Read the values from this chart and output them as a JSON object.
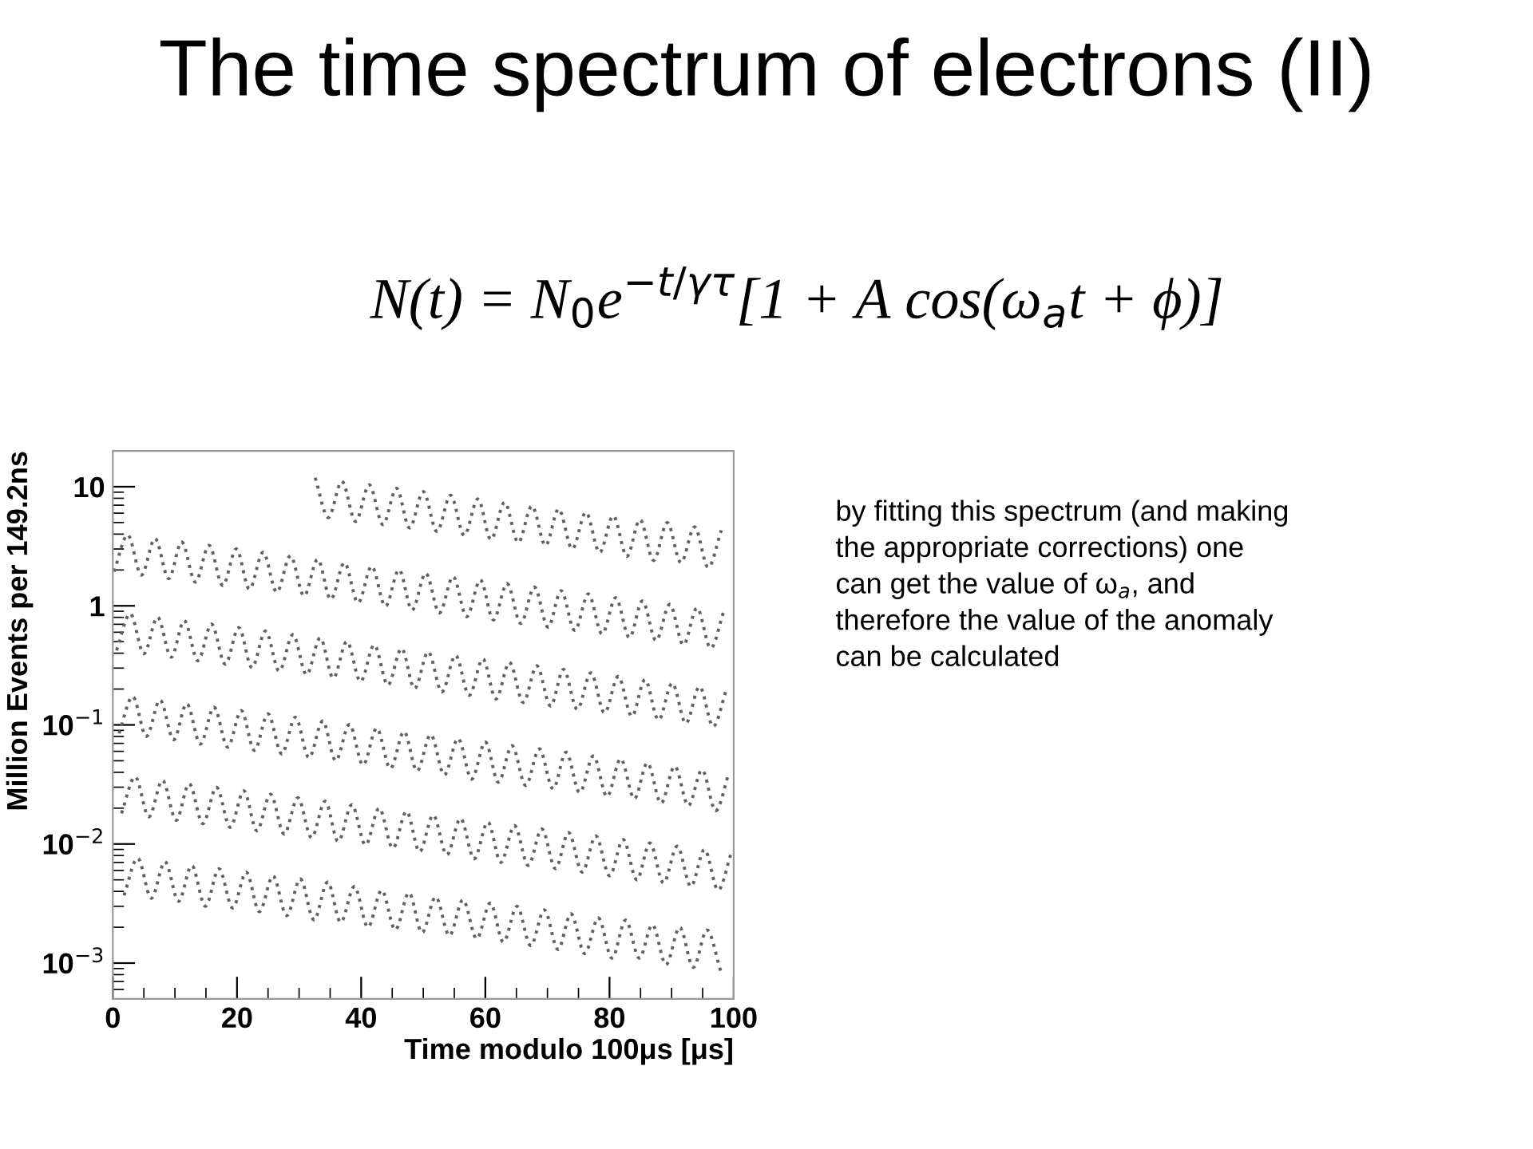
{
  "chart_data": {
    "type": "line",
    "title": "The time spectrum of electrons (II)",
    "xlabel": "Time modulo 100μs [μs]",
    "ylabel": "Million Events per 149.2ns",
    "annotations": [
      "N(t) = N$_{0}$e$^{−t/γτ}$[1 + A cos(ω$_{a}$t + ϕ)]",
      "by fitting this spectrum (and making\nthe appropriate corrections) one\ncan get the value of ω$_{a}$, and\ntherefore the value of the anomaly\ncan be calculated"
    ],
    "xlim": [
      0,
      100
    ],
    "xticks": [
      0,
      20,
      40,
      60,
      80,
      100
    ],
    "ylim": [
      0.0005,
      20
    ],
    "yticks": [
      {
        "value": 0.001,
        "label": "10$^{−3}$"
      },
      {
        "value": 0.01,
        "label": "10$^{−2}$"
      },
      {
        "value": 0.1,
        "label": "10$^{−1}$"
      },
      1,
      10
    ],
    "log": "y",
    "grid": false,
    "marker": "none",
    "line_style": "dotted",
    "series": [
      {
        "color": "#606060",
        "x": [
          32.6,
          34.7,
          36.9,
          39.1,
          41.3,
          43.5,
          45.7,
          47.8,
          50.0,
          52.2,
          54.4,
          56.6,
          58.8,
          60.9,
          63.1,
          65.3,
          67.5,
          69.7,
          71.8,
          74.0,
          76.2,
          78.4,
          80.6,
          82.8,
          84.9,
          87.1,
          89.3,
          91.5,
          93.7,
          95.9,
          98.0
        ],
        "values": [
          11.9,
          5.5,
          11.1,
          5.1,
          10.4,
          4.8,
          9.7,
          4.5,
          9.1,
          4.2,
          8.5,
          3.9,
          7.9,
          3.6,
          7.4,
          3.4,
          6.9,
          3.2,
          6.5,
          3.0,
          6.1,
          2.8,
          5.7,
          2.6,
          5.3,
          2.4,
          5.0,
          2.3,
          4.6,
          2.1,
          4.3
        ]
      },
      {
        "color": "#606060",
        "x": [
          0.2,
          2.4,
          4.6,
          6.8,
          9.0,
          11.1,
          13.3,
          15.5,
          17.7,
          19.9,
          22.0,
          24.2,
          26.4,
          28.6,
          30.8,
          33.0,
          35.1,
          37.3,
          39.5,
          41.7,
          43.9,
          46.1,
          48.2,
          50.4,
          52.6,
          54.8,
          57.0,
          59.2,
          61.3,
          63.5,
          65.7,
          67.9,
          70.1,
          72.2,
          74.4,
          76.6,
          78.8,
          81.0,
          83.2,
          85.3,
          87.5,
          89.7,
          91.9,
          94.1,
          96.3,
          98.4
        ],
        "values": [
          1.94,
          3.94,
          1.81,
          3.68,
          1.69,
          3.44,
          1.58,
          3.22,
          1.48,
          3.01,
          1.38,
          2.82,
          1.3,
          2.63,
          1.21,
          2.46,
          1.13,
          2.3,
          1.06,
          2.15,
          0.99,
          2.01,
          0.92,
          1.88,
          0.87,
          1.76,
          0.81,
          1.65,
          0.76,
          1.54,
          0.71,
          1.44,
          0.66,
          1.34,
          0.62,
          1.26,
          0.58,
          1.17,
          0.54,
          1.1,
          0.51,
          1.03,
          0.47,
          0.96,
          0.44,
          0.9
        ]
      },
      {
        "color": "#606060",
        "x": [
          0.6,
          2.8,
          5.0,
          7.2,
          9.4,
          11.5,
          13.7,
          15.9,
          18.1,
          20.3,
          22.4,
          24.6,
          26.8,
          29.0,
          31.2,
          33.4,
          35.5,
          37.7,
          39.9,
          42.1,
          44.3,
          46.5,
          48.6,
          50.8,
          53.0,
          55.2,
          57.4,
          59.6,
          61.7,
          63.9,
          66.1,
          68.3,
          70.5,
          72.6,
          74.8,
          77.0,
          79.2,
          81.4,
          83.6,
          85.7,
          87.9,
          90.1,
          92.3,
          94.5,
          96.7,
          98.8
        ],
        "values": [
          0.423,
          0.86,
          0.396,
          0.804,
          0.37,
          0.752,
          0.346,
          0.703,
          0.323,
          0.657,
          0.302,
          0.615,
          0.283,
          0.574,
          0.264,
          0.538,
          0.247,
          0.502,
          0.231,
          0.47,
          0.216,
          0.439,
          0.202,
          0.411,
          0.189,
          0.384,
          0.177,
          0.359,
          0.165,
          0.335,
          0.154,
          0.314,
          0.144,
          0.293,
          0.135,
          0.274,
          0.126,
          0.256,
          0.118,
          0.24,
          0.11,
          0.224,
          0.103,
          0.21,
          0.097,
          0.196
        ]
      },
      {
        "color": "#606060",
        "x": [
          1.0,
          3.2,
          5.4,
          7.6,
          9.8,
          11.9,
          14.1,
          16.3,
          18.5,
          20.7,
          22.8,
          25.0,
          27.2,
          29.4,
          31.6,
          33.8,
          35.9,
          38.1,
          40.3,
          42.5,
          44.7,
          46.9,
          49.0,
          51.2,
          53.4,
          55.6,
          57.8,
          60.0,
          62.1,
          64.3,
          66.5,
          68.7,
          70.9,
          73.0,
          75.2,
          77.4,
          79.6,
          81.8,
          84.0,
          86.1,
          88.3,
          90.5,
          92.7,
          94.9,
          97.1,
          99.2
        ],
        "values": [
          0.085,
          0.173,
          0.08,
          0.162,
          0.075,
          0.151,
          0.069,
          0.141,
          0.065,
          0.132,
          0.061,
          0.124,
          0.057,
          0.116,
          0.053,
          0.108,
          0.05,
          0.101,
          0.046,
          0.094,
          0.043,
          0.088,
          0.041,
          0.083,
          0.038,
          0.077,
          0.035,
          0.072,
          0.033,
          0.067,
          0.031,
          0.063,
          0.029,
          0.059,
          0.027,
          0.055,
          0.025,
          0.052,
          0.024,
          0.048,
          0.022,
          0.045,
          0.021,
          0.042,
          0.019,
          0.039
        ]
      },
      {
        "color": "#606060",
        "x": [
          1.4,
          3.6,
          5.8,
          8.0,
          10.2,
          12.3,
          14.5,
          16.7,
          18.9,
          21.1,
          23.2,
          25.4,
          27.6,
          29.8,
          32.0,
          34.2,
          36.3,
          38.5,
          40.7,
          42.9,
          45.1,
          47.3,
          49.4,
          51.6,
          53.8,
          56.0,
          58.2,
          60.4,
          62.5,
          64.7,
          66.9,
          69.1,
          71.3,
          73.4,
          75.6,
          77.8,
          80.0,
          82.2,
          84.4,
          86.5,
          88.7,
          90.9,
          93.1,
          95.3,
          97.5,
          99.6
        ],
        "values": [
          0.0181,
          0.0367,
          0.0169,
          0.0343,
          0.0158,
          0.0321,
          0.0148,
          0.03,
          0.0138,
          0.028,
          0.0129,
          0.0262,
          0.0121,
          0.0245,
          0.0113,
          0.0229,
          0.0105,
          0.0214,
          0.0098,
          0.02,
          0.0092,
          0.0188,
          0.0086,
          0.0175,
          0.0081,
          0.0164,
          0.0075,
          0.0153,
          0.007,
          0.0143,
          0.0066,
          0.0134,
          0.0062,
          0.0125,
          0.0058,
          0.0117,
          0.0054,
          0.0109,
          0.005,
          0.0102,
          0.0047,
          0.0096,
          0.0044,
          0.009,
          0.0041,
          0.0084
        ]
      },
      {
        "color": "#606060",
        "x": [
          1.8,
          4.0,
          6.2,
          8.4,
          10.6,
          12.7,
          14.9,
          17.1,
          19.3,
          21.5,
          23.6,
          25.8,
          28.0,
          30.2,
          32.4,
          34.6,
          36.7,
          38.9,
          41.1,
          43.3,
          45.5,
          47.7,
          49.8,
          52.0,
          54.2,
          56.4,
          58.6,
          60.8,
          62.9,
          65.1,
          67.3,
          69.5,
          71.7,
          73.8,
          76.0,
          78.2,
          80.4,
          82.6,
          84.8,
          86.9,
          89.1,
          91.3,
          93.5,
          95.7,
          97.9
        ],
        "values": [
          0.0037,
          0.0076,
          0.0035,
          0.0071,
          0.0033,
          0.0066,
          0.003,
          0.0062,
          0.0029,
          0.0058,
          0.0027,
          0.0054,
          0.0025,
          0.0051,
          0.0023,
          0.0048,
          0.0022,
          0.0044,
          0.002,
          0.0041,
          0.0019,
          0.0039,
          0.0018,
          0.0036,
          0.0017,
          0.0034,
          0.0016,
          0.0032,
          0.0015,
          0.003,
          0.0014,
          0.0028,
          0.0013,
          0.0026,
          0.0012,
          0.0024,
          0.0011,
          0.0023,
          0.0011,
          0.0021,
          0.00097,
          0.002,
          0.00092,
          0.0019,
          0.00086
        ]
      }
    ]
  }
}
